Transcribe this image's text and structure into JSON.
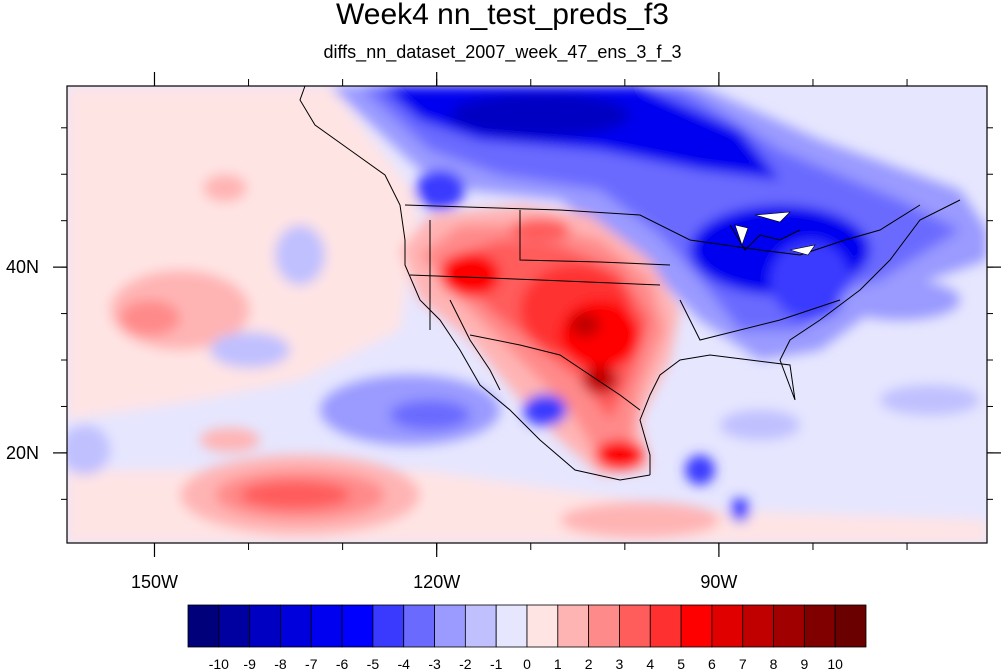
{
  "title": "Week4 nn_test_preds_f3",
  "subtitle": "diffs_nn_dataset_2007_week_47_ens_3_f_3",
  "lon_ticks": [
    {
      "label": "150W",
      "lon": -150
    },
    {
      "label": "120W",
      "lon": -120
    },
    {
      "label": "90W",
      "lon": -90
    }
  ],
  "lat_ticks": [
    {
      "label": "40N",
      "lat": 40
    },
    {
      "label": "20N",
      "lat": 20
    }
  ],
  "map_extent": {
    "lon_min": -159.3,
    "lon_max": -61.5,
    "lat_min": 10.3,
    "lat_max": 59.5
  },
  "colorbar": {
    "levels": [
      "-10",
      "-9",
      "-8",
      "-7",
      "-6",
      "-5",
      "-4",
      "-3",
      "-2",
      "-1",
      "0",
      "1",
      "2",
      "3",
      "4",
      "5",
      "6",
      "7",
      "8",
      "9",
      "10"
    ],
    "colors": [
      "#00007a",
      "#0000a0",
      "#0000c2",
      "#0000dc",
      "#0000f0",
      "#0000ff",
      "#3a3aff",
      "#6a6aff",
      "#9a9aff",
      "#c0c0ff",
      "#e6e6ff",
      "#ffe4e4",
      "#ffb4b4",
      "#ff8a8a",
      "#ff5c5c",
      "#ff3030",
      "#ff0000",
      "#e00000",
      "#c00000",
      "#a00000",
      "#800000",
      "#6a0000"
    ]
  }
}
